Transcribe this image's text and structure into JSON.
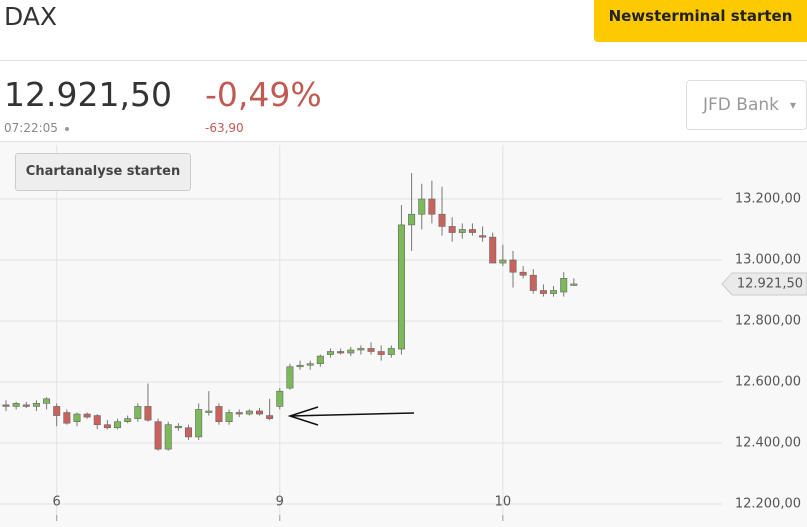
{
  "header": {
    "title": "DAX",
    "button": "Newsterminal starten"
  },
  "quote": {
    "price": "12.921,50",
    "change_pct": "-0,49%",
    "time": "07:22:05",
    "change_abs": "-63,90",
    "broker": "JFD Bank"
  },
  "chart_button": "Chartanalyse starten",
  "chart_data": {
    "type": "candlestick",
    "categories": [
      null,
      null,
      null,
      null,
      null,
      "6",
      null,
      null,
      null,
      null,
      null,
      null,
      null,
      null,
      null,
      null,
      null,
      null,
      null,
      null,
      null,
      null,
      null,
      null,
      null,
      null,
      null,
      "9",
      null,
      null,
      null,
      null,
      null,
      null,
      null,
      null,
      null,
      null,
      null,
      null,
      null,
      null,
      null,
      null,
      null,
      null,
      null,
      null,
      null,
      "10",
      null,
      null,
      null,
      null,
      null,
      null,
      null
    ],
    "open": [
      12525,
      12520,
      12525,
      12520,
      12530,
      12520,
      12500,
      12470,
      12495,
      12490,
      12460,
      12450,
      12470,
      12480,
      12520,
      12470,
      12380,
      12450,
      12450,
      12420,
      12500,
      12520,
      12470,
      12500,
      12495,
      12505,
      12490,
      12520,
      12580,
      12650,
      12655,
      12660,
      12690,
      12700,
      12695,
      12705,
      12710,
      12700,
      12690,
      12708,
      13115,
      13150,
      13200,
      13150,
      13110,
      13090,
      13100,
      13080,
      13075,
      12990,
      13000,
      12960,
      12950,
      12900,
      12890,
      12895,
      12920
    ],
    "high": [
      12540,
      12535,
      12535,
      12540,
      12550,
      12530,
      12510,
      12500,
      12500,
      12495,
      12475,
      12480,
      12490,
      12530,
      12595,
      12480,
      12470,
      12465,
      12460,
      12530,
      12570,
      12530,
      12510,
      12510,
      12510,
      12515,
      12545,
      12580,
      12660,
      12670,
      12670,
      12690,
      12710,
      12710,
      12715,
      12720,
      12730,
      12720,
      12720,
      13180,
      13285,
      13250,
      13260,
      13240,
      13140,
      13120,
      13120,
      13110,
      13090,
      13050,
      13030,
      12980,
      12970,
      12920,
      12915,
      12960,
      12940
    ],
    "low": [
      12505,
      12510,
      12515,
      12505,
      12510,
      12455,
      12460,
      12455,
      12480,
      12445,
      12445,
      12445,
      12465,
      12470,
      12470,
      12375,
      12375,
      12440,
      12410,
      12410,
      12490,
      12460,
      12460,
      12485,
      12490,
      12490,
      12475,
      12510,
      12575,
      12640,
      12640,
      12650,
      12680,
      12690,
      12685,
      12690,
      12690,
      12670,
      12680,
      12690,
      13030,
      13100,
      13120,
      13080,
      13060,
      13070,
      13080,
      13060,
      12990,
      12980,
      12910,
      12940,
      12890,
      12880,
      12880,
      12880,
      12915
    ],
    "close": [
      12520,
      12530,
      12520,
      12530,
      12545,
      12490,
      12465,
      12495,
      12485,
      12460,
      12450,
      12470,
      12480,
      12520,
      12475,
      12380,
      12460,
      12455,
      12420,
      12510,
      12505,
      12470,
      12500,
      12495,
      12505,
      12495,
      12480,
      12570,
      12650,
      12655,
      12660,
      12685,
      12700,
      12695,
      12705,
      12710,
      12700,
      12690,
      12710,
      13115,
      13150,
      13200,
      13150,
      13110,
      13090,
      13100,
      13090,
      13075,
      12990,
      13000,
      12960,
      12950,
      12900,
      12890,
      12900,
      12940,
      12921.5
    ],
    "up_color": "#7cb95b",
    "down_color": "#c9625d",
    "ylim": [
      12164,
      13377
    ],
    "yticks": [
      {
        "value": 12200,
        "label": "12.200,00"
      },
      {
        "value": 12400,
        "label": "12.400,00"
      },
      {
        "value": 12600,
        "label": "12.600,00"
      },
      {
        "value": 12800,
        "label": "12.800,00"
      },
      {
        "value": 13000,
        "label": "13.000,00"
      },
      {
        "value": 13200,
        "label": "13.200,00"
      }
    ],
    "last_price": {
      "value": 12921.5,
      "label": "12.921,50"
    },
    "grid": true
  }
}
